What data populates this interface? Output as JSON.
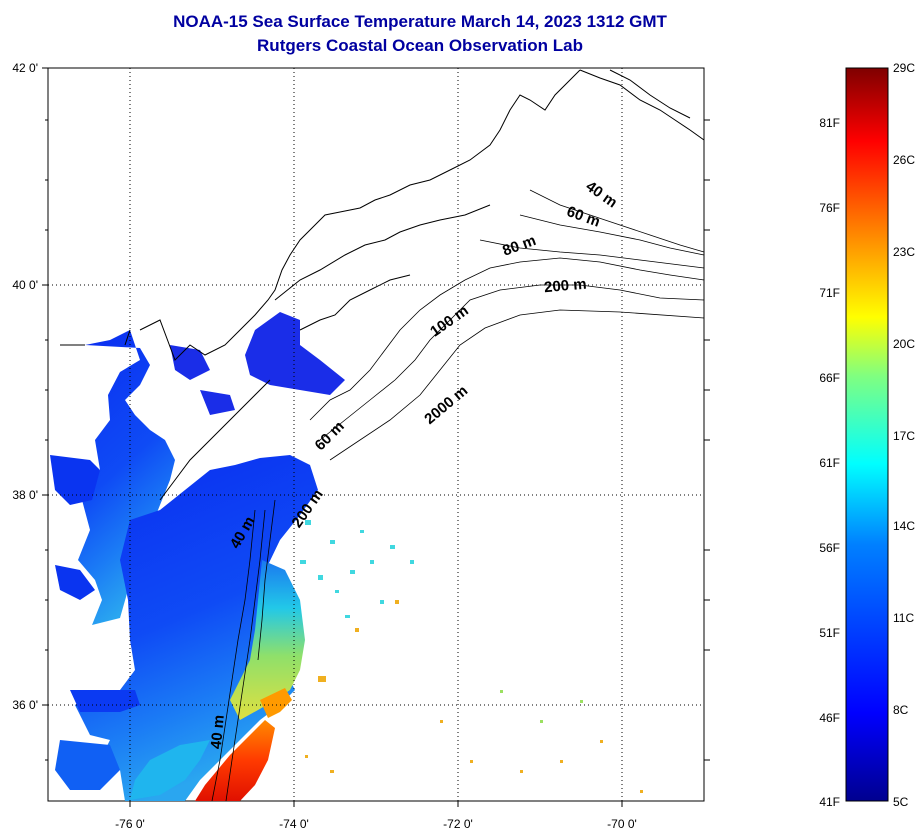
{
  "title": {
    "line1": "NOAA-15 Sea Surface Temperature March 14, 2023 1312 GMT",
    "line2": "Rutgers Coastal Ocean Observation Lab"
  },
  "map": {
    "lat_labels": [
      "42 0'",
      "40 0'",
      "38 0'",
      "36 0'"
    ],
    "lon_labels": [
      "-76 0'",
      "-74 0'",
      "-72 0'",
      "-70 0'"
    ],
    "contour_labels": [
      "40 m",
      "60 m",
      "80 m",
      "200 m",
      "100 m",
      "2000 m",
      "60 m",
      "200 m",
      "40 m",
      "40 m"
    ],
    "grid": "dotted"
  },
  "colorbar": {
    "fahrenheit_labels": [
      "81F",
      "76F",
      "71F",
      "66F",
      "61F",
      "56F",
      "51F",
      "46F",
      "41F"
    ],
    "celsius_labels": [
      "29C",
      "26C",
      "23C",
      "20C",
      "17C",
      "14C",
      "11C",
      "8C",
      "5C"
    ],
    "colors": [
      "#7f0000",
      "#ff0000",
      "#ff8000",
      "#ffff00",
      "#80ff80",
      "#00ffff",
      "#0080ff",
      "#0000ff",
      "#00008f"
    ]
  }
}
